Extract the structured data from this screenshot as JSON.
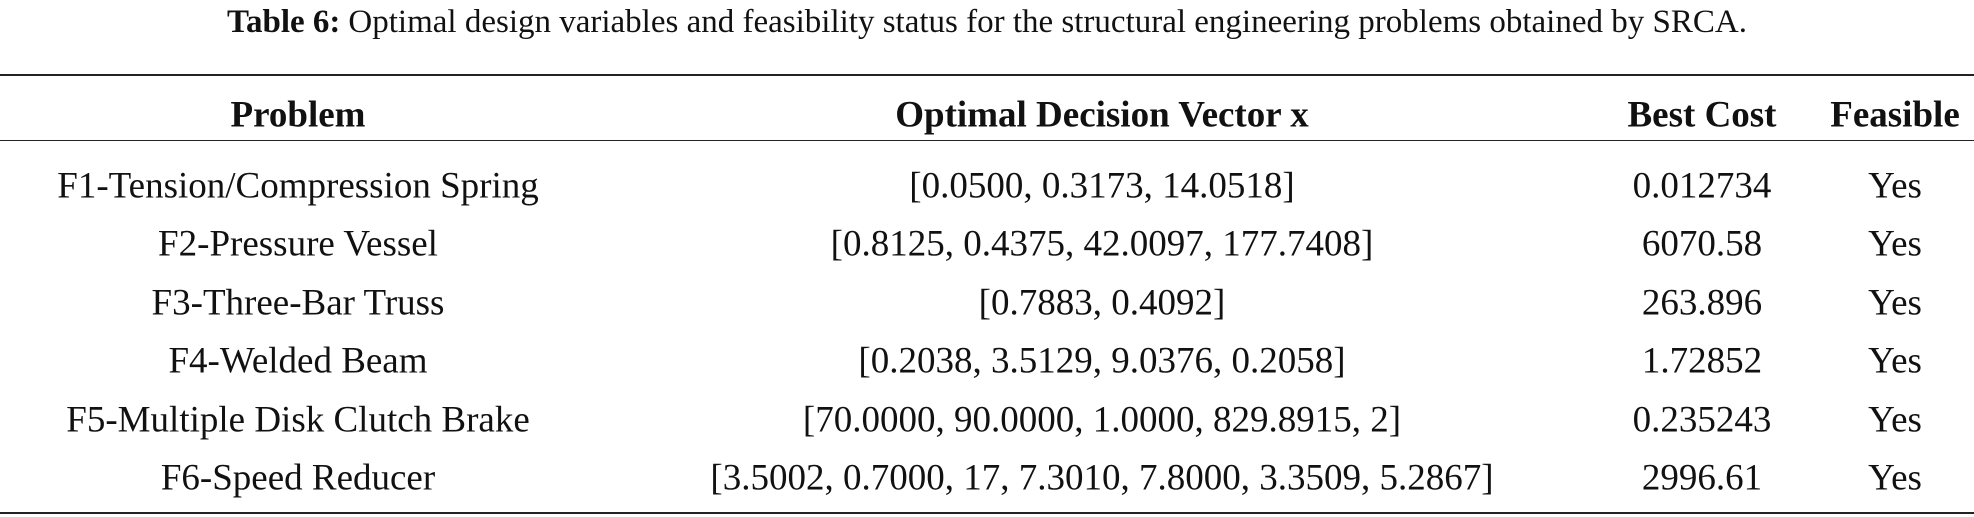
{
  "caption": {
    "label": "Table 6:",
    "text": "Optimal design variables and feasibility status for the structural engineering problems obtained by SRCA."
  },
  "table": {
    "headers": [
      "Problem",
      "Optimal Decision Vector x",
      "Best Cost",
      "Feasible"
    ],
    "rows": [
      [
        "F1-Tension/Compression Spring",
        "[0.0500, 0.3173, 14.0518]",
        "0.012734",
        "Yes"
      ],
      [
        "F2-Pressure Vessel",
        "[0.8125, 0.4375, 42.0097, 177.7408]",
        "6070.58",
        "Yes"
      ],
      [
        "F3-Three-Bar Truss",
        "[0.7883, 0.4092]",
        "263.896",
        "Yes"
      ],
      [
        "F4-Welded Beam",
        "[0.2038, 3.5129, 9.0376, 0.2058]",
        "1.72852",
        "Yes"
      ],
      [
        "F5-Multiple Disk Clutch Brake",
        "[70.0000, 90.0000, 1.0000, 829.8915, 2]",
        "0.235243",
        "Yes"
      ],
      [
        "F6-Speed Reducer",
        "[3.5002, 0.7000, 17, 7.3010, 7.8000, 3.3509, 5.2867]",
        "2996.61",
        "Yes"
      ]
    ]
  }
}
